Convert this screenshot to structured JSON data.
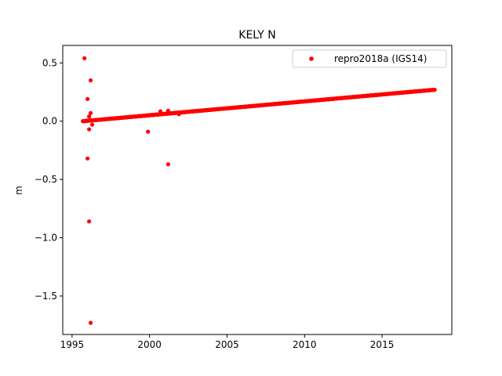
{
  "chart_data": {
    "type": "scatter",
    "title": "KELY N",
    "xlabel": "",
    "ylabel": "m",
    "xlim": [
      1994.4,
      2019.5
    ],
    "ylim": [
      -1.83,
      0.65
    ],
    "xticks": [
      1995,
      2000,
      2005,
      2010,
      2015
    ],
    "yticks": [
      0.5,
      0.0,
      -0.5,
      -1.0,
      -1.5
    ],
    "ytick_labels": [
      "0.5",
      "0.0",
      "−0.5",
      "−1.0",
      "−1.5"
    ],
    "grid": false,
    "legend_position": "upper-right",
    "series": [
      {
        "name": "repro2018a (IGS14)",
        "color": "#ff0000",
        "trend": {
          "x_start": 1995.7,
          "y_start": 0.0,
          "x_end": 2018.4,
          "y_end": 0.27
        },
        "outliers": [
          {
            "x": 1995.8,
            "y": 0.54
          },
          {
            "x": 1996.2,
            "y": 0.35
          },
          {
            "x": 1996.0,
            "y": 0.19
          },
          {
            "x": 1996.2,
            "y": 0.07
          },
          {
            "x": 1996.1,
            "y": 0.04
          },
          {
            "x": 1996.3,
            "y": -0.03
          },
          {
            "x": 1996.1,
            "y": -0.07
          },
          {
            "x": 1996.0,
            "y": -0.32
          },
          {
            "x": 1996.1,
            "y": -0.86
          },
          {
            "x": 1996.2,
            "y": -1.73
          },
          {
            "x": 1999.9,
            "y": -0.09
          },
          {
            "x": 2001.2,
            "y": -0.37
          },
          {
            "x": 2000.7,
            "y": 0.085
          },
          {
            "x": 2001.2,
            "y": 0.09
          },
          {
            "x": 2001.9,
            "y": 0.06
          }
        ]
      }
    ]
  }
}
